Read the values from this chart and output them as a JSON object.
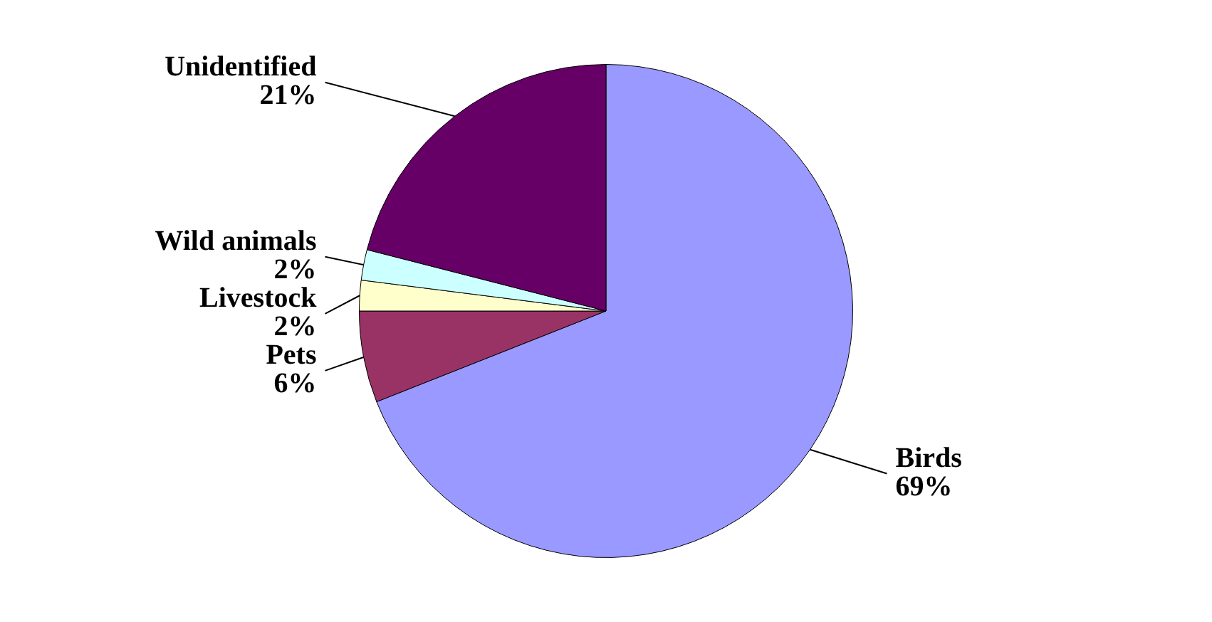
{
  "chart_data": {
    "type": "pie",
    "categories": [
      "Birds",
      "Pets",
      "Livestock",
      "Wild animals",
      "Unidentified"
    ],
    "values": [
      69,
      6,
      2,
      2,
      21
    ],
    "value_labels": [
      "69%",
      "6%",
      "2%",
      "2%",
      "21%"
    ],
    "colors": [
      "#9999ff",
      "#993366",
      "#ffffcc",
      "#ccffff",
      "#660066"
    ]
  }
}
